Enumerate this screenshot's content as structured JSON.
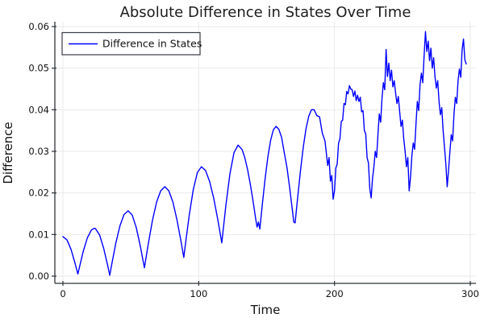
{
  "title": "Absolute Difference in States Over Time",
  "legend": {
    "label": "Difference in States",
    "position": "top-left"
  },
  "colors": {
    "line": "#0000ff",
    "grid": "#e9e9e9",
    "spine": "#2f3337",
    "text": "#111111",
    "background": "#ffffff",
    "legend_border": "#3a3d42",
    "legend_fill": "#ffffff"
  },
  "chart_data": {
    "type": "line",
    "title": "Absolute Difference in States Over Time",
    "xlabel": "Time",
    "ylabel": "Difference",
    "xlim": [
      0,
      300
    ],
    "ylim": [
      0,
      0.06
    ],
    "grid": true,
    "legend_position": "top-left",
    "x_ticks": {
      "values": [
        0,
        100,
        200,
        300
      ],
      "labels": [
        "0",
        "100",
        "200",
        "300"
      ]
    },
    "y_ticks": {
      "values": [
        0,
        0.01,
        0.02,
        0.03,
        0.04,
        0.05,
        0.06
      ],
      "labels": [
        "0.00",
        "0.01",
        "0.02",
        "0.03",
        "0.04",
        "0.05",
        "0.06"
      ]
    },
    "series": [
      {
        "name": "Difference in States",
        "color": "#0000ff",
        "points": [
          [
            0,
            0.0095
          ],
          [
            3,
            0.0087
          ],
          [
            6,
            0.0064
          ],
          [
            9,
            0.003
          ],
          [
            11,
            0.0005
          ],
          [
            12,
            0.0019
          ],
          [
            15,
            0.006
          ],
          [
            18,
            0.0092
          ],
          [
            21,
            0.0111
          ],
          [
            23,
            0.0115
          ],
          [
            24,
            0.0114
          ],
          [
            27,
            0.0099
          ],
          [
            30,
            0.0067
          ],
          [
            33,
            0.0025
          ],
          [
            34.5,
            0.0002
          ],
          [
            36,
            0.0029
          ],
          [
            39,
            0.008
          ],
          [
            42,
            0.0121
          ],
          [
            45,
            0.0148
          ],
          [
            48,
            0.0157
          ],
          [
            51,
            0.0147
          ],
          [
            54,
            0.0117
          ],
          [
            57,
            0.0072
          ],
          [
            60,
            0.002
          ],
          [
            63,
            0.008
          ],
          [
            66,
            0.0135
          ],
          [
            69,
            0.0178
          ],
          [
            72,
            0.0205
          ],
          [
            75,
            0.0215
          ],
          [
            78,
            0.0205
          ],
          [
            81,
            0.0178
          ],
          [
            84,
            0.0135
          ],
          [
            87,
            0.0083
          ],
          [
            89,
            0.0045
          ],
          [
            90,
            0.0071
          ],
          [
            93,
            0.0146
          ],
          [
            96,
            0.0208
          ],
          [
            99,
            0.0249
          ],
          [
            102,
            0.0263
          ],
          [
            105,
            0.0254
          ],
          [
            108,
            0.0228
          ],
          [
            111,
            0.0188
          ],
          [
            114,
            0.0137
          ],
          [
            117,
            0.008
          ],
          [
            120,
            0.017
          ],
          [
            123,
            0.0246
          ],
          [
            126,
            0.0297
          ],
          [
            129,
            0.0315
          ],
          [
            132,
            0.0304
          ],
          [
            134,
            0.0284
          ],
          [
            136,
            0.0256
          ],
          [
            138,
            0.0221
          ],
          [
            140,
            0.0181
          ],
          [
            142,
            0.0137
          ],
          [
            143,
            0.0118
          ],
          [
            144,
            0.013
          ],
          [
            145,
            0.0113
          ],
          [
            147,
            0.0177
          ],
          [
            149,
            0.0237
          ],
          [
            151,
            0.0288
          ],
          [
            153,
            0.0327
          ],
          [
            155,
            0.0352
          ],
          [
            157,
            0.036
          ],
          [
            159,
            0.0353
          ],
          [
            161,
            0.0334
          ],
          [
            163,
            0.0297
          ],
          [
            165,
            0.0261
          ],
          [
            167,
            0.0212
          ],
          [
            169,
            0.0158
          ],
          [
            170,
            0.013
          ],
          [
            171,
            0.0128
          ],
          [
            173,
            0.0193
          ],
          [
            175,
            0.0255
          ],
          [
            177,
            0.031
          ],
          [
            179,
            0.0354
          ],
          [
            181,
            0.0384
          ],
          [
            183,
            0.04
          ],
          [
            185,
            0.04
          ],
          [
            187,
            0.0386
          ],
          [
            189,
            0.0383
          ],
          [
            191,
            0.0344
          ],
          [
            193,
            0.0325
          ],
          [
            195,
            0.0266
          ],
          [
            196,
            0.0285
          ],
          [
            197,
            0.0228
          ],
          [
            198,
            0.0242
          ],
          [
            199,
            0.0185
          ],
          [
            200,
            0.0205
          ],
          [
            201,
            0.026
          ],
          [
            202,
            0.027
          ],
          [
            203,
            0.032
          ],
          [
            204,
            0.033
          ],
          [
            205,
            0.0372
          ],
          [
            206,
            0.0375
          ],
          [
            207,
            0.0415
          ],
          [
            208,
            0.0412
          ],
          [
            209,
            0.0444
          ],
          [
            210,
            0.0438
          ],
          [
            211,
            0.0458
          ],
          [
            212,
            0.045
          ],
          [
            213,
            0.0448
          ],
          [
            214,
            0.0432
          ],
          [
            215,
            0.0445
          ],
          [
            216,
            0.0422
          ],
          [
            217,
            0.0435
          ],
          [
            218,
            0.042
          ],
          [
            219,
            0.043
          ],
          [
            220,
            0.0395
          ],
          [
            221,
            0.0398
          ],
          [
            222,
            0.035
          ],
          [
            223,
            0.0342
          ],
          [
            224,
            0.0285
          ],
          [
            225,
            0.0272
          ],
          [
            226,
            0.021
          ],
          [
            227,
            0.0188
          ],
          [
            228,
            0.0235
          ],
          [
            229,
            0.0262
          ],
          [
            230,
            0.03
          ],
          [
            231,
            0.0285
          ],
          [
            232,
            0.034
          ],
          [
            233,
            0.039
          ],
          [
            234,
            0.037
          ],
          [
            235,
            0.0428
          ],
          [
            236,
            0.0465
          ],
          [
            237,
            0.0448
          ],
          [
            238,
            0.0545
          ],
          [
            239,
            0.048
          ],
          [
            240,
            0.0512
          ],
          [
            241,
            0.047
          ],
          [
            242,
            0.0495
          ],
          [
            243,
            0.0455
          ],
          [
            244,
            0.047
          ],
          [
            245,
            0.044
          ],
          [
            246,
            0.0415
          ],
          [
            247,
            0.0432
          ],
          [
            248,
            0.0395
          ],
          [
            249,
            0.036
          ],
          [
            250,
            0.0375
          ],
          [
            251,
            0.033
          ],
          [
            252,
            0.03
          ],
          [
            253,
            0.0263
          ],
          [
            254,
            0.0285
          ],
          [
            255,
            0.0205
          ],
          [
            256,
            0.0238
          ],
          [
            257,
            0.029
          ],
          [
            258,
            0.032
          ],
          [
            259,
            0.0305
          ],
          [
            260,
            0.0365
          ],
          [
            261,
            0.042
          ],
          [
            262,
            0.0398
          ],
          [
            263,
            0.046
          ],
          [
            264,
            0.0488
          ],
          [
            265,
            0.0465
          ],
          [
            266,
            0.053
          ],
          [
            267,
            0.0588
          ],
          [
            268,
            0.054
          ],
          [
            269,
            0.0565
          ],
          [
            270,
            0.0518
          ],
          [
            271,
            0.0548
          ],
          [
            272,
            0.05
          ],
          [
            273,
            0.0525
          ],
          [
            274,
            0.048
          ],
          [
            275,
            0.0452
          ],
          [
            276,
            0.047
          ],
          [
            277,
            0.042
          ],
          [
            278,
            0.0388
          ],
          [
            279,
            0.0405
          ],
          [
            280,
            0.035
          ],
          [
            281,
            0.031
          ],
          [
            282,
            0.027
          ],
          [
            283,
            0.0215
          ],
          [
            284,
            0.0255
          ],
          [
            285,
            0.03
          ],
          [
            286,
            0.034
          ],
          [
            287,
            0.0325
          ],
          [
            288,
            0.039
          ],
          [
            289,
            0.043
          ],
          [
            290,
            0.0415
          ],
          [
            291,
            0.047
          ],
          [
            292,
            0.0498
          ],
          [
            293,
            0.0478
          ],
          [
            294,
            0.0545
          ],
          [
            295,
            0.057
          ],
          [
            296,
            0.052
          ],
          [
            297,
            0.051
          ]
        ]
      }
    ]
  }
}
